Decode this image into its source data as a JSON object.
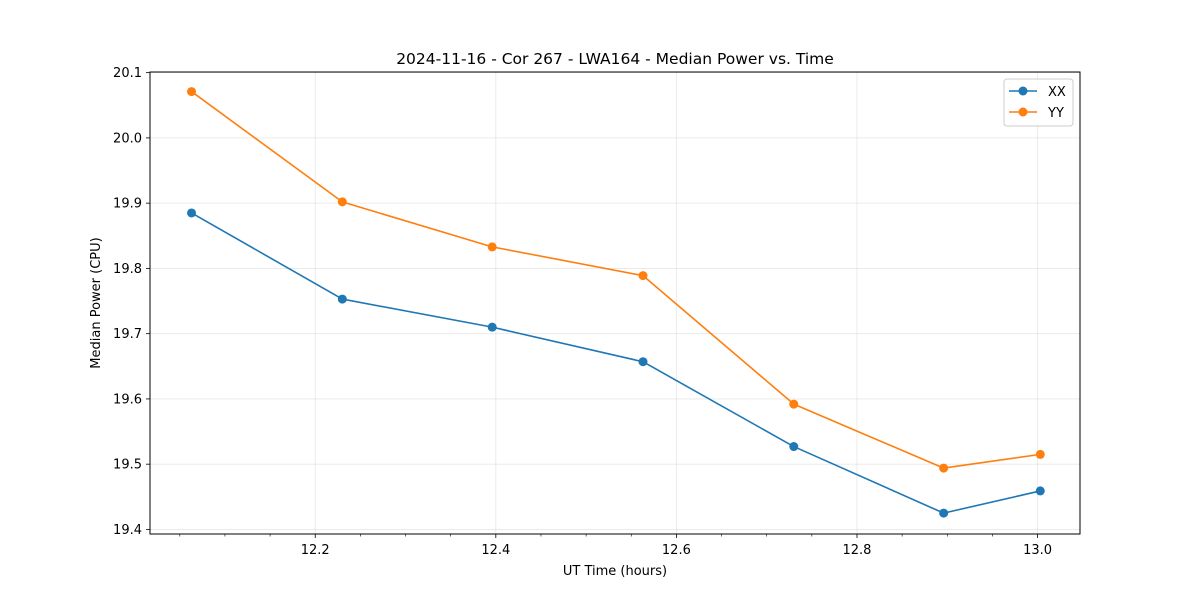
{
  "chart_data": {
    "type": "line",
    "title": "2024-11-16 - Cor 267 - LWA164 - Median Power vs. Time",
    "xlabel": "UT Time (hours)",
    "ylabel": "Median Power (CPU)",
    "xlim": [
      12.017,
      13.047
    ],
    "ylim": [
      19.393,
      20.101
    ],
    "xticks": [
      12.2,
      12.4,
      12.6,
      12.8,
      13.0
    ],
    "xtick_labels": [
      "12.2",
      "12.4",
      "12.6",
      "12.8",
      "13.0"
    ],
    "xminor_step": 0.05,
    "yticks": [
      19.4,
      19.5,
      19.6,
      19.7,
      19.8,
      19.9,
      20.0,
      20.1
    ],
    "ytick_labels": [
      "19.4",
      "19.5",
      "19.6",
      "19.7",
      "19.8",
      "19.9",
      "20.0",
      "20.1"
    ],
    "grid": true,
    "legend_position": "top-right",
    "x": [
      12.063,
      12.23,
      12.396,
      12.563,
      12.73,
      12.896,
      13.003
    ],
    "series": [
      {
        "name": "XX",
        "color": "#1f77b4",
        "values": [
          19.885,
          19.753,
          19.71,
          19.657,
          19.527,
          19.425,
          19.459
        ]
      },
      {
        "name": "YY",
        "color": "#ff7f0e",
        "values": [
          20.071,
          19.902,
          19.833,
          19.789,
          19.592,
          19.494,
          19.515
        ]
      }
    ]
  }
}
